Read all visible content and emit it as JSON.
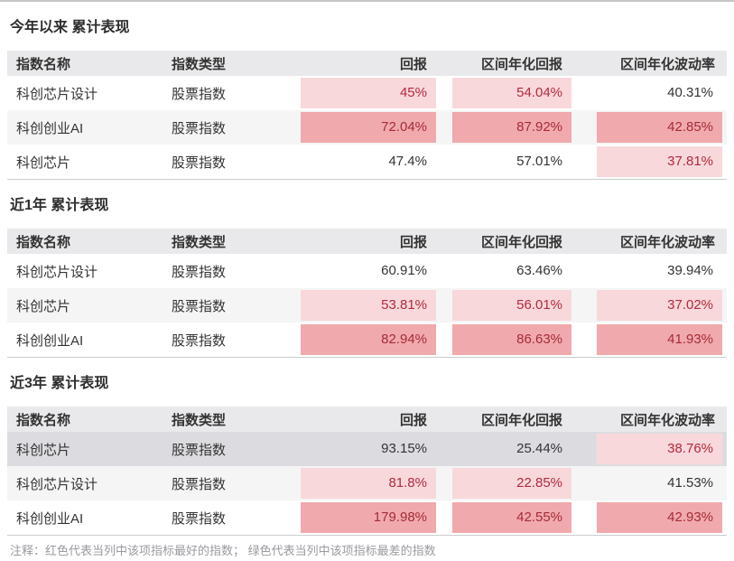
{
  "colors": {
    "highlight_best_light": "#f8d8db",
    "highlight_best_strong": "#f0aaad",
    "value_red_on_light": "#b22a3e",
    "value_red_on_strong": "#a62b38",
    "header_bg": "#e9e9eb",
    "row_alt_bg": "#f5f5f6",
    "row_selected_bg": "#dcdce0"
  },
  "columns": {
    "name": "指数名称",
    "type": "指数类型",
    "ret": "回报",
    "ann": "区间年化回报",
    "vol": "区间年化波动率"
  },
  "tables": [
    {
      "title": "今年以来 累计表现",
      "rows": [
        {
          "cls": "",
          "name": "科创芯片设计",
          "type": "股票指数",
          "ret": {
            "v": "45%",
            "cls": "val hl-light"
          },
          "ann": {
            "v": "54.04%",
            "cls": "val hl-light"
          },
          "vol": {
            "v": "40.31%",
            "cls": "val"
          }
        },
        {
          "cls": "alt",
          "name": "科创创业AI",
          "type": "股票指数",
          "ret": {
            "v": "72.04%",
            "cls": "val hl-strong"
          },
          "ann": {
            "v": "87.92%",
            "cls": "val hl-strong"
          },
          "vol": {
            "v": "42.85%",
            "cls": "val hl-strong"
          }
        },
        {
          "cls": "",
          "name": "科创芯片",
          "type": "股票指数",
          "ret": {
            "v": "47.4%",
            "cls": "val"
          },
          "ann": {
            "v": "57.01%",
            "cls": "val"
          },
          "vol": {
            "v": "37.81%",
            "cls": "val hl-light"
          }
        }
      ]
    },
    {
      "title": "近1年 累计表现",
      "rows": [
        {
          "cls": "",
          "name": "科创芯片设计",
          "type": "股票指数",
          "ret": {
            "v": "60.91%",
            "cls": "val"
          },
          "ann": {
            "v": "63.46%",
            "cls": "val"
          },
          "vol": {
            "v": "39.94%",
            "cls": "val"
          }
        },
        {
          "cls": "alt",
          "name": "科创芯片",
          "type": "股票指数",
          "ret": {
            "v": "53.81%",
            "cls": "val hl-light"
          },
          "ann": {
            "v": "56.01%",
            "cls": "val hl-light"
          },
          "vol": {
            "v": "37.02%",
            "cls": "val hl-light"
          }
        },
        {
          "cls": "",
          "name": "科创创业AI",
          "type": "股票指数",
          "ret": {
            "v": "82.94%",
            "cls": "val hl-strong"
          },
          "ann": {
            "v": "86.63%",
            "cls": "val hl-strong"
          },
          "vol": {
            "v": "41.93%",
            "cls": "val hl-strong"
          }
        }
      ]
    },
    {
      "title": "近3年 累计表现",
      "rows": [
        {
          "cls": "sel",
          "name": "科创芯片",
          "type": "股票指数",
          "ret": {
            "v": "93.15%",
            "cls": "val"
          },
          "ann": {
            "v": "25.44%",
            "cls": "val"
          },
          "vol": {
            "v": "38.76%",
            "cls": "val hl-light"
          }
        },
        {
          "cls": "alt",
          "name": "科创芯片设计",
          "type": "股票指数",
          "ret": {
            "v": "81.8%",
            "cls": "val hl-light"
          },
          "ann": {
            "v": "22.85%",
            "cls": "val hl-light"
          },
          "vol": {
            "v": "41.53%",
            "cls": "val"
          }
        },
        {
          "cls": "",
          "name": "科创创业AI",
          "type": "股票指数",
          "ret": {
            "v": "179.98%",
            "cls": "val hl-strong"
          },
          "ann": {
            "v": "42.55%",
            "cls": "val hl-strong"
          },
          "vol": {
            "v": "42.93%",
            "cls": "val hl-strong"
          }
        }
      ]
    }
  ],
  "note": "注释：红色代表当列中该项指标最好的指数； 绿色代表当列中该项指标最差的指数"
}
